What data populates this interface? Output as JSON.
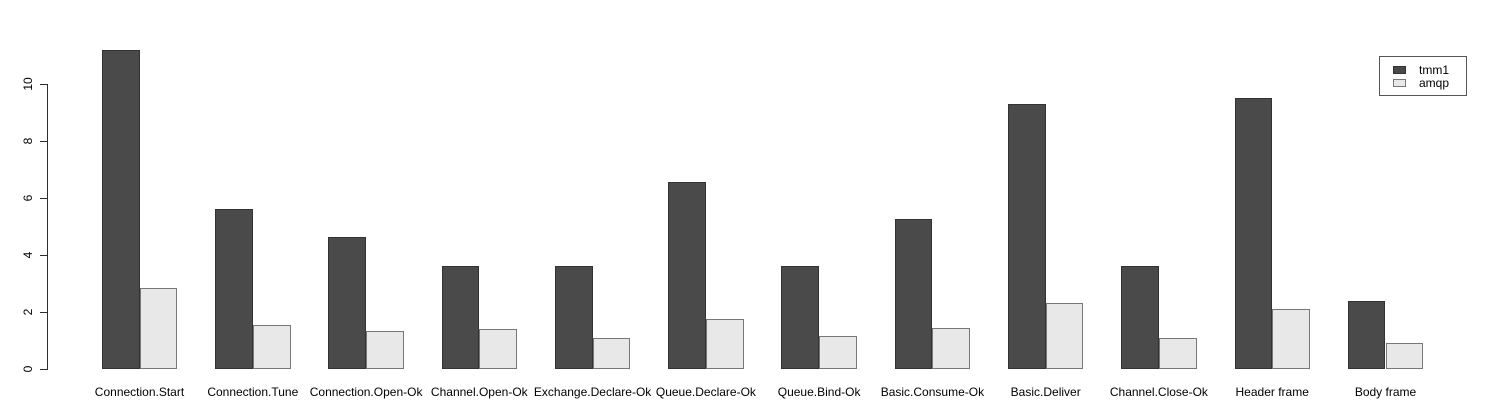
{
  "chart_data": {
    "type": "bar",
    "title": "",
    "xlabel": "",
    "ylabel": "",
    "categories": [
      "Connection.Start",
      "Connection.Tune",
      "Connection.Open-Ok",
      "Channel.Open-Ok",
      "Exchange.Declare-Ok",
      "Queue.Declare-Ok",
      "Queue.Bind-Ok",
      "Basic.Consume-Ok",
      "Basic.Deliver",
      "Channel.Close-Ok",
      "Header frame",
      "Body frame"
    ],
    "series": [
      {
        "name": "tmm1",
        "fill_color": "#4a4a4a",
        "border_color": "#333333",
        "values": [
          11.2,
          5.6,
          4.65,
          3.6,
          3.6,
          6.55,
          3.6,
          5.25,
          9.3,
          3.6,
          9.5,
          2.4
        ]
      },
      {
        "name": "amqp",
        "fill_color": "#e8e8e8",
        "border_color": "#777777",
        "values": [
          2.85,
          1.55,
          1.35,
          1.4,
          1.1,
          1.75,
          1.15,
          1.45,
          2.3,
          1.1,
          2.1,
          0.9
        ]
      }
    ],
    "ylim": [
      0,
      11.4
    ],
    "yticks": [
      0,
      2,
      4,
      6,
      8,
      10
    ],
    "grid": false,
    "legend_position": "top-right",
    "axis_color": "#2e2e2e",
    "background_color": "#ffffff"
  }
}
